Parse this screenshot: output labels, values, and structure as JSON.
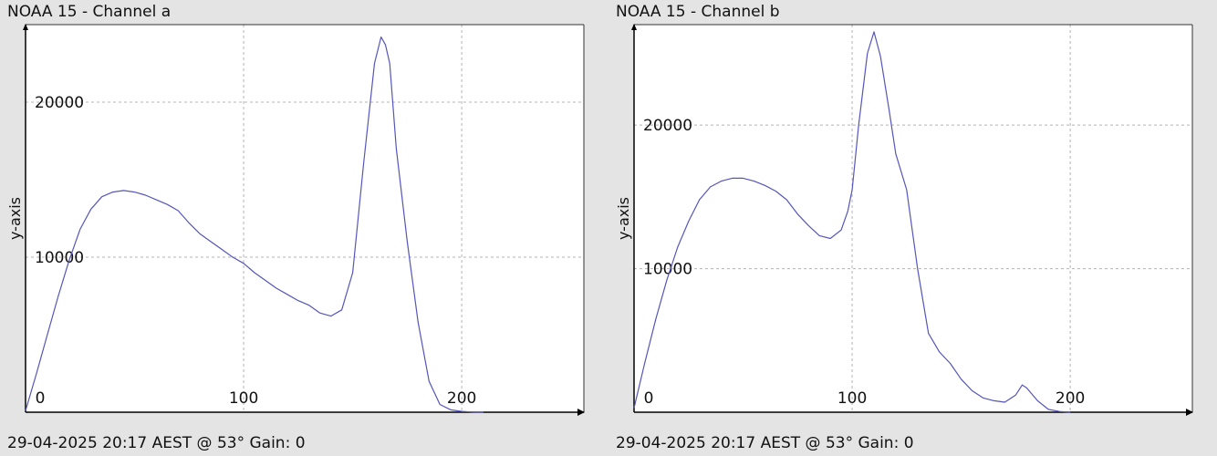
{
  "charts": [
    {
      "title": "NOAA 15 - Channel a",
      "footer": "29-04-2025 20:17 AEST @ 53° Gain: 0",
      "chart_data": {
        "type": "line",
        "title": "NOAA 15 - Channel a",
        "xlabel": "",
        "ylabel": "y-axis",
        "xlim": [
          0,
          256
        ],
        "ylim": [
          0,
          25000
        ],
        "xticks": [
          0,
          100,
          200
        ],
        "yticks": [
          10000,
          20000
        ],
        "grid": true,
        "line_color": "#5555bb",
        "x": [
          0,
          5,
          10,
          15,
          20,
          25,
          30,
          35,
          40,
          45,
          50,
          55,
          60,
          65,
          70,
          75,
          80,
          85,
          90,
          95,
          100,
          105,
          110,
          115,
          120,
          125,
          130,
          135,
          140,
          145,
          150,
          155,
          160,
          163,
          165,
          167,
          170,
          175,
          180,
          185,
          190,
          195,
          200,
          205,
          210
        ],
        "y": [
          100,
          2500,
          5000,
          7500,
          9800,
          11800,
          13100,
          13900,
          14200,
          14300,
          14200,
          14000,
          13700,
          13400,
          13000,
          12200,
          11500,
          11000,
          10500,
          10000,
          9600,
          9000,
          8500,
          8000,
          7600,
          7200,
          6900,
          6400,
          6200,
          6600,
          9000,
          16000,
          22500,
          24200,
          23700,
          22500,
          17000,
          11000,
          5800,
          2000,
          500,
          150,
          50,
          10,
          0
        ]
      }
    },
    {
      "title": "NOAA 15 - Channel b",
      "footer": "29-04-2025 20:17 AEST @ 53° Gain: 0",
      "chart_data": {
        "type": "line",
        "title": "NOAA 15 - Channel b",
        "xlabel": "",
        "ylabel": "y-axis",
        "xlim": [
          0,
          256
        ],
        "ylim": [
          0,
          27000
        ],
        "xticks": [
          0,
          100,
          200
        ],
        "yticks": [
          10000,
          20000
        ],
        "grid": true,
        "line_color": "#5555bb",
        "x": [
          0,
          5,
          10,
          15,
          20,
          25,
          30,
          35,
          40,
          45,
          50,
          55,
          60,
          65,
          70,
          75,
          80,
          85,
          90,
          95,
          98,
          100,
          103,
          107,
          110,
          113,
          117,
          120,
          125,
          130,
          135,
          140,
          145,
          150,
          155,
          160,
          165,
          170,
          175,
          178,
          180,
          185,
          190,
          195,
          200
        ],
        "y": [
          300,
          3500,
          6500,
          9200,
          11500,
          13300,
          14800,
          15700,
          16100,
          16300,
          16300,
          16100,
          15800,
          15400,
          14800,
          13800,
          13000,
          12300,
          12100,
          12700,
          14000,
          15500,
          20000,
          25000,
          26500,
          24800,
          21000,
          18000,
          15500,
          10000,
          5500,
          4200,
          3400,
          2300,
          1500,
          1000,
          800,
          700,
          1200,
          1900,
          1700,
          800,
          200,
          50,
          0
        ]
      }
    }
  ]
}
